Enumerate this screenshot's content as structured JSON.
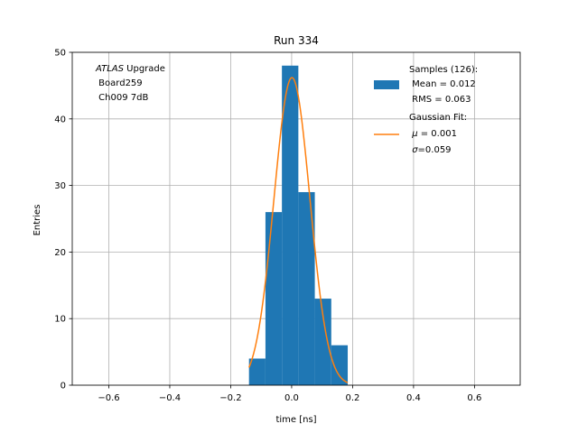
{
  "chart_data": {
    "type": "bar",
    "title": "Run 334",
    "xlabel": "time [ns]",
    "ylabel": "Entries",
    "xlim": [
      -0.72,
      0.75
    ],
    "ylim": [
      0,
      50
    ],
    "grid": true,
    "x_ticks": [
      -0.6,
      -0.4,
      -0.2,
      0.0,
      0.2,
      0.4,
      0.6
    ],
    "x_tick_labels": [
      "−0.6",
      "−0.4",
      "−0.2",
      "0.0",
      "0.2",
      "0.4",
      "0.6"
    ],
    "y_ticks": [
      0,
      10,
      20,
      30,
      40,
      50
    ],
    "y_tick_labels": [
      "0",
      "10",
      "20",
      "30",
      "40",
      "50"
    ],
    "histogram": {
      "bin_edges": [
        -0.14,
        -0.086,
        -0.032,
        0.022,
        0.076,
        0.13,
        0.184
      ],
      "counts": [
        4,
        26,
        48,
        29,
        13,
        6
      ],
      "color": "#1f77b4"
    },
    "fit": {
      "type": "gaussian",
      "amplitude": 46.2,
      "mu": 0.001,
      "sigma": 0.059,
      "x_range": [
        -0.14,
        0.184
      ],
      "color": "#ff7f0e"
    },
    "annotation": {
      "italic": "ATLAS",
      "rest": " Upgrade",
      "lines": [
        " Board259",
        " Ch009 7dB"
      ]
    },
    "legend": {
      "placement": "top-right",
      "entries": [
        {
          "marker": "patch",
          "color": "#1f77b4",
          "lines": [
            "Samples (126):",
            " Mean = 0.012",
            " RMS = 0.063"
          ]
        },
        {
          "marker": "line",
          "color": "#ff7f0e",
          "lines": [
            "Gaussian Fit:",
            " μ = 0.001",
            " σ=0.059"
          ],
          "italic_symbols": [
            "μ",
            "σ"
          ]
        }
      ]
    }
  }
}
